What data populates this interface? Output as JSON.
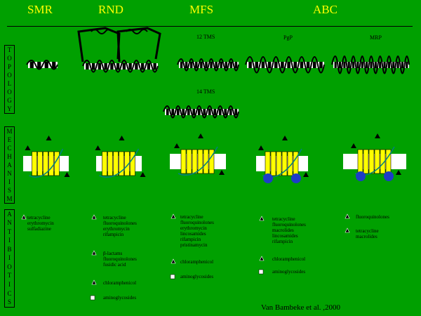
{
  "families": {
    "smr": "SMR",
    "rnd": "RND",
    "mfs": "MFS",
    "abc": "ABC"
  },
  "row_labels": {
    "topology": [
      "T",
      "O",
      "P",
      "O",
      "L",
      "O",
      "G",
      "Y"
    ],
    "mechanism": [
      "M",
      "E",
      "C",
      "H",
      "A",
      "N",
      "I",
      "S",
      "M"
    ],
    "antibiotics": [
      "A",
      "N",
      "T",
      "I",
      "B",
      "I",
      "O",
      "T",
      "I",
      "C",
      "S"
    ]
  },
  "topology_labels": {
    "mfs_12": "12 TMS",
    "mfs_14": "14 TMS",
    "pgp": "PgP",
    "mrp": "MRP"
  },
  "antibiotics": {
    "smr": "tetracycline\nerythromycin\nsulfadiazine",
    "rnd_1": "tetracycline\nfluoroquinolones\nerythromycin\nrifampicin",
    "rnd_2": "β-lactams\nfluoroquinolones\nfusidic acid",
    "rnd_3": "chloramphenicol",
    "rnd_4": "aminoglycosides",
    "mfs_1": "tetracycline\nfluoroquinolones\nerythromycin\nlincosamides\nrifampicin\npristinamycin",
    "mfs_2": "chloramphenicol",
    "mfs_3": "aminoglycosides",
    "abc_pgp_1": "tetracycline\nfluoroquinolones\nmacrolides\nlincosamides\nrifampicin",
    "abc_pgp_2": "chloramphenicol",
    "abc_pgp_3": "aminoglycosides",
    "abc_mrp_1": "fluoroquinolones",
    "abc_mrp_2": "tetracycline\nmacrolides"
  },
  "credit": "Van Bambeke et al. ,2000",
  "colors": {
    "background": "#00a000",
    "title": "#ffff00",
    "helix": "#ffff00",
    "membrane": "#ffffff",
    "atp_domain": "#1e3cc8",
    "arrow": "#008080"
  }
}
